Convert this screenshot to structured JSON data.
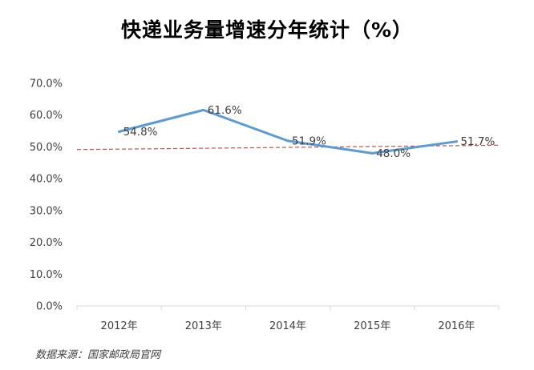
{
  "chart_data": {
    "type": "line",
    "title": "快递业务量增速分年统计（%）",
    "categories": [
      "2012年",
      "2013年",
      "2014年",
      "2015年",
      "2016年"
    ],
    "series": [
      {
        "values": [
          54.8,
          61.6,
          51.9,
          48.0,
          51.7
        ],
        "color": "#5b9bd5"
      },
      {
        "style": "dashed-trend",
        "values": [
          49.3,
          49.6,
          49.85,
          50.1,
          50.4
        ],
        "color": "#c0504d"
      }
    ],
    "data_labels": [
      "54.8%",
      "61.6%",
      "51.9%",
      "48.0%",
      "51.7%"
    ],
    "ylim": [
      0,
      70
    ],
    "y_ticks": [
      0,
      10,
      20,
      30,
      40,
      50,
      60,
      70
    ],
    "y_tick_labels": [
      "0.0%",
      "10.0%",
      "20.0%",
      "30.0%",
      "40.0%",
      "50.0%",
      "60.0%",
      "70.0%"
    ],
    "xlabel": "",
    "ylabel": "",
    "grid": false,
    "legend": "none"
  },
  "source_note": "数据来源：国家邮政局官网"
}
